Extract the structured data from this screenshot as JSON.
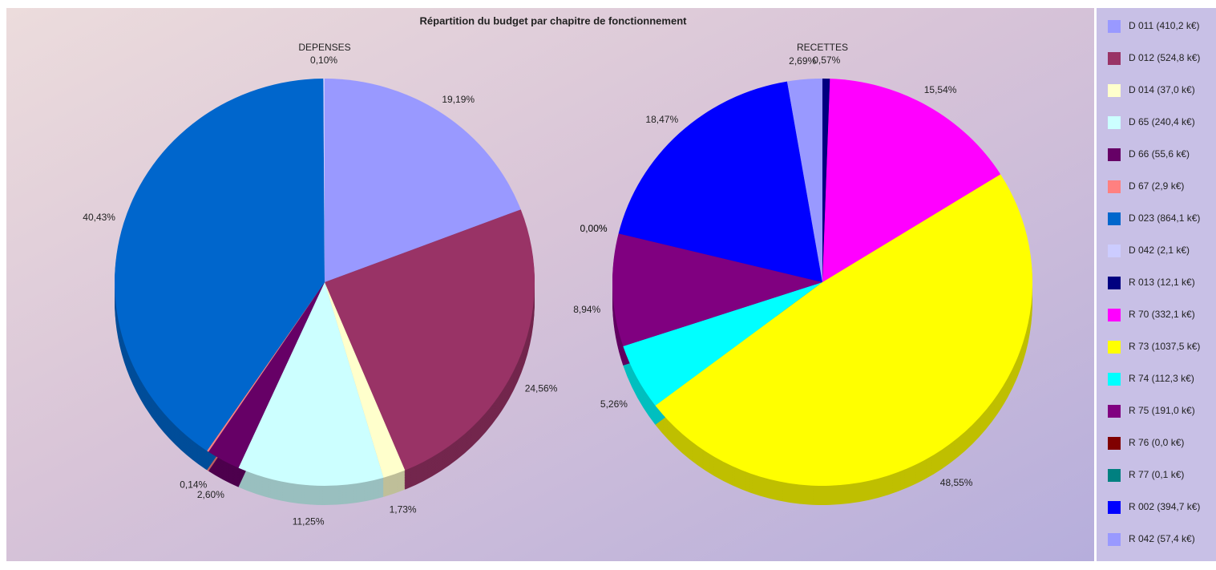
{
  "title": "Répartition du budget par chapitre de fonctionnement",
  "chart_data": [
    {
      "type": "pie",
      "title": "DEPENSES",
      "categories": [
        "D 011 (410,2 k€)",
        "D 012 (524,8 k€)",
        "D 014 (37,0 k€)",
        "D 65 (240,4 k€)",
        "D 66 (55,6 k€)",
        "D 67 (2,9 k€)",
        "D 023 (864,1 k€)",
        "D 042 (2,1 k€)"
      ],
      "values": [
        19.19,
        24.56,
        1.73,
        11.25,
        2.6,
        0.14,
        40.43,
        0.1
      ],
      "value_labels": [
        "19,19%",
        "24,56%",
        "1,73%",
        "11,25%",
        "2,60%",
        "0,14%",
        "40,43%",
        "0,10%"
      ],
      "colors": [
        "#9999ff",
        "#993366",
        "#ffffcc",
        "#ccffff",
        "#660066",
        "#ff8080",
        "#0066cc",
        "#ccccff"
      ]
    },
    {
      "type": "pie",
      "title": "RECETTES",
      "categories": [
        "R 013 (12,1 k€)",
        "R 70 (332,1 k€)",
        "R 73 (1037,5 k€)",
        "R 74 (112,3 k€)",
        "R 75 (191,0 k€)",
        "R 76 (0,0 k€)",
        "R 77 (0,1 k€)",
        "R 002 (394,7 k€)",
        "R 042 (57,4 k€)"
      ],
      "values": [
        0.57,
        15.54,
        48.55,
        5.26,
        8.94,
        0.0,
        0.0,
        18.47,
        2.69
      ],
      "value_labels": [
        "0,57%",
        "15,54%",
        "48,55%",
        "5,26%",
        "8,94%",
        "0,00%",
        "0,00%",
        "18,47%",
        "2,69%"
      ],
      "colors": [
        "#000080",
        "#ff00ff",
        "#ffff00",
        "#00ffff",
        "#800080",
        "#800000",
        "#008080",
        "#0000ff",
        "#9999ff"
      ]
    }
  ]
}
